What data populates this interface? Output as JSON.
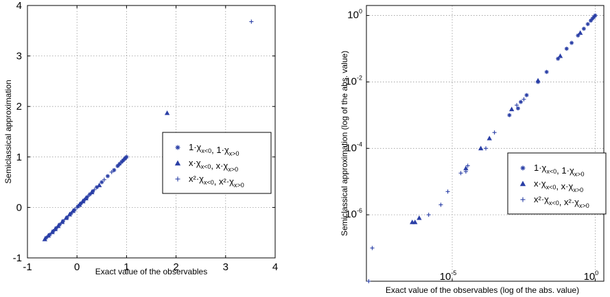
{
  "colors": {
    "marker": "#2a3fa6",
    "axis": "#000000",
    "grid": "#9a9a9a",
    "background": "#ffffff"
  },
  "chart_data": [
    {
      "type": "scatter",
      "scale": "linear",
      "title": "",
      "xlabel": "Exact value of the observables",
      "ylabel": "Semiclassical approximation",
      "xlim": [
        -1,
        4
      ],
      "ylim": [
        -1,
        4
      ],
      "xticks": [
        "-1",
        "0",
        "1",
        "2",
        "3",
        "4"
      ],
      "yticks": [
        "-1",
        "0",
        "1",
        "2",
        "3",
        "4"
      ],
      "grid": true,
      "legend_position": "right-middle",
      "legend": [
        {
          "text": "1·χx<0, 1·χx>0",
          "marker": "star"
        },
        {
          "text": "x·χx<0, x·χx>0",
          "marker": "triangle"
        },
        {
          "text": "x²·χx<0, x²·χx>0",
          "marker": "plus"
        }
      ],
      "series": [
        {
          "marker": "star",
          "x": [
            -0.62,
            -0.55,
            -0.48,
            -0.42,
            -0.35,
            -0.28,
            -0.2,
            -0.12,
            -0.05,
            0.02,
            0.08,
            0.14,
            0.2,
            0.26,
            0.32,
            0.4,
            0.5,
            0.62,
            0.75,
            0.82,
            0.86,
            0.9,
            0.93,
            0.96,
            0.98,
            1.0
          ],
          "y": [
            -0.6,
            -0.54,
            -0.47,
            -0.41,
            -0.34,
            -0.27,
            -0.2,
            -0.12,
            -0.05,
            0.02,
            0.08,
            0.14,
            0.2,
            0.26,
            0.32,
            0.4,
            0.5,
            0.62,
            0.74,
            0.82,
            0.86,
            0.9,
            0.93,
            0.96,
            0.98,
            1.0
          ]
        },
        {
          "marker": "triangle",
          "x": [
            -0.65,
            -0.58,
            -0.5,
            -0.44,
            -0.38,
            -0.3,
            -0.22,
            -0.15,
            -0.08,
            0.05,
            0.12,
            0.18,
            0.3,
            0.45,
            1.82
          ],
          "y": [
            -0.63,
            -0.56,
            -0.49,
            -0.43,
            -0.37,
            -0.29,
            -0.21,
            -0.14,
            -0.07,
            0.05,
            0.12,
            0.18,
            0.3,
            0.44,
            1.87
          ]
        },
        {
          "marker": "plus",
          "x": [
            0.0,
            0.03,
            0.06,
            0.1,
            0.15,
            0.22,
            0.35,
            0.55,
            0.7,
            0.85,
            0.95,
            3.52
          ],
          "y": [
            0.0,
            0.03,
            0.06,
            0.1,
            0.15,
            0.22,
            0.35,
            0.55,
            0.7,
            0.85,
            0.95,
            3.68
          ]
        }
      ]
    },
    {
      "type": "scatter",
      "scale": "log",
      "title": "",
      "xlabel": "Exact value of the observables (log of the abs. value)",
      "ylabel": "Semiclassical approximation (log of the abs. value)",
      "xlim": [
        1e-08,
        2
      ],
      "ylim": [
        1e-08,
        2
      ],
      "xticks": [
        {
          "value": 1e-05,
          "base": "10",
          "exp": "-5"
        },
        {
          "value": 1,
          "base": "10",
          "exp": "0"
        }
      ],
      "yticks": [
        {
          "value": 1,
          "base": "10",
          "exp": "0"
        },
        {
          "value": 0.01,
          "base": "10",
          "exp": "-2"
        },
        {
          "value": 0.0001,
          "base": "10",
          "exp": "-4"
        },
        {
          "value": 1e-06,
          "base": "10",
          "exp": "-6"
        }
      ],
      "grid": true,
      "legend_position": "right-lower",
      "legend": [
        {
          "text": "1·χx<0, 1·χx>0",
          "marker": "star"
        },
        {
          "text": "x·χx<0, x·χx>0",
          "marker": "triangle"
        },
        {
          "text": "x²·χx<0, x²·χx>0",
          "marker": "plus"
        }
      ],
      "series": [
        {
          "marker": "star",
          "x": [
            0.001,
            0.002,
            0.0025,
            0.004,
            0.01,
            0.02,
            0.05,
            0.1,
            0.15,
            0.25,
            0.4,
            0.55,
            0.7,
            0.8,
            0.9,
            1.0
          ],
          "y": [
            0.001,
            0.0016,
            0.0025,
            0.004,
            0.01,
            0.02,
            0.05,
            0.1,
            0.15,
            0.25,
            0.4,
            0.55,
            0.7,
            0.8,
            0.9,
            1.0
          ]
        },
        {
          "marker": "triangle",
          "x": [
            4e-07,
            5e-07,
            7e-07,
            3e-05,
            0.0001,
            0.0002,
            0.0012,
            0.01,
            0.06,
            0.3
          ],
          "y": [
            6e-07,
            6e-07,
            8e-07,
            2.5e-05,
            0.0001,
            0.0002,
            0.0015,
            0.011,
            0.06,
            0.3
          ]
        },
        {
          "marker": "plus",
          "x": [
            1.2e-08,
            1.6e-08,
            1.5e-06,
            4e-06,
            7e-06,
            2e-05,
            3e-05,
            3.5e-05,
            0.00015,
            0.0003,
            0.0018,
            0.0032
          ],
          "y": [
            1e-08,
            1e-07,
            1e-06,
            2e-06,
            5e-06,
            1.8e-05,
            2e-05,
            3e-05,
            0.0001,
            0.0003,
            0.002,
            0.003
          ]
        }
      ]
    }
  ]
}
